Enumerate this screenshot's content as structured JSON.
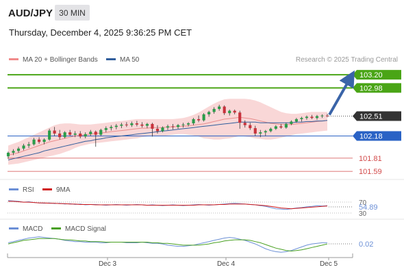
{
  "header": {
    "symbol": "AUD/JPY",
    "timeframe": "30 MIN",
    "datetime": "Thursday, December 4, 2025 9:36:25 PM CET"
  },
  "legend": {
    "ma20_label": "MA 20 + Bollinger Bands",
    "ma50_label": "MA 50",
    "ma20_color": "#f08a8a",
    "ma50_color": "#2f5d9c"
  },
  "credit": "Research © 2025 Trading Central",
  "colors": {
    "resistance": "#4aa516",
    "current": "#333333",
    "pivot": "#2a62c5",
    "support": "#d24a4a",
    "bull_candle": "#2a9d4a",
    "bear_candle": "#c8323c",
    "band_fill": "#f7c6c6",
    "arrow": "#3a64a8",
    "rsi": "#6b8fd6",
    "rsi_ma": "#d01818",
    "macd": "#6b8fd6",
    "macd_signal": "#48a020"
  },
  "levels": [
    {
      "name": "resistance-2",
      "label": "103.20",
      "value": 103.2,
      "style": "resistance"
    },
    {
      "name": "resistance-1",
      "label": "102.98",
      "value": 102.98,
      "style": "resistance"
    },
    {
      "name": "current-price",
      "label": "102.51",
      "value": 102.51,
      "style": "current"
    },
    {
      "name": "pivot",
      "label": "102.18",
      "value": 102.18,
      "style": "pivot"
    },
    {
      "name": "support-1",
      "label": "101.81",
      "value": 101.81,
      "style": "support"
    },
    {
      "name": "support-2",
      "label": "101.59",
      "value": 101.59,
      "style": "support"
    }
  ],
  "rsi": {
    "label": "RSI",
    "ma_label": "9MA",
    "ticks": [
      "70",
      "30"
    ],
    "value_label": "54.89",
    "values": [
      68,
      67,
      66,
      64,
      65,
      63,
      62,
      61,
      62,
      60,
      61,
      59,
      60,
      58,
      59,
      57,
      58,
      58,
      57,
      56,
      57,
      58,
      57,
      56,
      57,
      58,
      57,
      56,
      57,
      56,
      55,
      56,
      57,
      56,
      55,
      56,
      57,
      58,
      57,
      56,
      57,
      58,
      59,
      60,
      61,
      60,
      59,
      58,
      57,
      55,
      53,
      50,
      47,
      46,
      45,
      47,
      49,
      50,
      52,
      53,
      55,
      54,
      55
    ],
    "ma_values": [
      66,
      66,
      65,
      64,
      64,
      63,
      62,
      62,
      61,
      61,
      60,
      60,
      59,
      59,
      58,
      58,
      58,
      57,
      57,
      57,
      57,
      57,
      57,
      57,
      57,
      57,
      57,
      56,
      56,
      56,
      56,
      56,
      56,
      56,
      56,
      56,
      56,
      57,
      57,
      57,
      57,
      58,
      58,
      59,
      59,
      59,
      59,
      58,
      57,
      56,
      55,
      53,
      51,
      49,
      48,
      47,
      48,
      49,
      50,
      51,
      52,
      53,
      54
    ]
  },
  "macd": {
    "label": "MACD",
    "signal_label": "MACD Signal",
    "value_label": "0.02",
    "values": [
      0.02,
      0.04,
      0.06,
      0.08,
      0.1,
      0.11,
      0.12,
      0.11,
      0.1,
      0.09,
      0.08,
      0.06,
      0.05,
      0.04,
      0.04,
      0.03,
      0.03,
      0.03,
      0.02,
      0.02,
      0.03,
      0.03,
      0.03,
      0.02,
      0.02,
      0.02,
      0.03,
      0.02,
      0.01,
      0.01,
      0.0,
      -0.02,
      -0.03,
      -0.04,
      -0.04,
      -0.03,
      -0.02,
      0.0,
      0.02,
      0.04,
      0.06,
      0.08,
      0.1,
      0.11,
      0.1,
      0.08,
      0.06,
      0.03,
      0.0,
      -0.04,
      -0.08,
      -0.11,
      -0.13,
      -0.14,
      -0.13,
      -0.11,
      -0.08,
      -0.05,
      -0.02,
      0.0,
      0.01,
      0.02,
      0.02
    ],
    "signal_values": [
      0.0,
      0.02,
      0.04,
      0.06,
      0.07,
      0.08,
      0.09,
      0.09,
      0.09,
      0.09,
      0.08,
      0.07,
      0.07,
      0.06,
      0.05,
      0.05,
      0.04,
      0.04,
      0.04,
      0.03,
      0.03,
      0.03,
      0.03,
      0.03,
      0.03,
      0.03,
      0.03,
      0.03,
      0.02,
      0.02,
      0.01,
      0.01,
      0.0,
      -0.01,
      -0.02,
      -0.02,
      -0.02,
      -0.02,
      -0.01,
      0.0,
      0.02,
      0.03,
      0.05,
      0.06,
      0.07,
      0.07,
      0.07,
      0.06,
      0.04,
      0.02,
      -0.01,
      -0.04,
      -0.07,
      -0.09,
      -0.11,
      -0.12,
      -0.11,
      -0.1,
      -0.08,
      -0.06,
      -0.04,
      -0.02,
      0.0
    ]
  },
  "chart_data": {
    "type": "candlestick",
    "x_labels": [
      "Dec 3",
      "Dec 4",
      "Dec 5"
    ],
    "ylim": [
      101.5,
      103.35
    ],
    "arrow": {
      "from": 102.51,
      "to": 103.2
    },
    "candles": [
      [
        101.84,
        101.92,
        101.8,
        101.9
      ],
      [
        101.9,
        101.96,
        101.86,
        101.93
      ],
      [
        101.93,
        102.0,
        101.9,
        101.97
      ],
      [
        101.97,
        102.05,
        101.94,
        102.02
      ],
      [
        102.02,
        102.08,
        101.98,
        102.04
      ],
      [
        102.04,
        102.15,
        102.02,
        102.12
      ],
      [
        102.12,
        102.16,
        102.05,
        102.08
      ],
      [
        102.08,
        102.14,
        102.04,
        102.12
      ],
      [
        102.12,
        102.3,
        102.1,
        102.27
      ],
      [
        102.27,
        102.33,
        102.18,
        102.22
      ],
      [
        102.22,
        102.28,
        102.12,
        102.16
      ],
      [
        102.16,
        102.26,
        102.14,
        102.24
      ],
      [
        102.24,
        102.28,
        102.18,
        102.2
      ],
      [
        102.2,
        102.26,
        102.16,
        102.22
      ],
      [
        102.22,
        102.26,
        102.14,
        102.17
      ],
      [
        102.17,
        102.24,
        102.14,
        102.21
      ],
      [
        102.21,
        102.28,
        102.18,
        102.25
      ],
      [
        102.25,
        102.27,
        102.0,
        102.2
      ],
      [
        102.2,
        102.3,
        102.18,
        102.28
      ],
      [
        102.28,
        102.34,
        102.24,
        102.31
      ],
      [
        102.31,
        102.36,
        102.27,
        102.33
      ],
      [
        102.33,
        102.38,
        102.29,
        102.35
      ],
      [
        102.35,
        102.4,
        102.31,
        102.37
      ],
      [
        102.37,
        102.41,
        102.33,
        102.36
      ],
      [
        102.36,
        102.42,
        102.33,
        102.39
      ],
      [
        102.39,
        102.43,
        102.34,
        102.37
      ],
      [
        102.37,
        102.41,
        102.32,
        102.35
      ],
      [
        102.35,
        102.4,
        102.31,
        102.38
      ],
      [
        102.38,
        102.4,
        102.17,
        102.3
      ],
      [
        102.3,
        102.36,
        102.22,
        102.26
      ],
      [
        102.26,
        102.34,
        102.24,
        102.32
      ],
      [
        102.32,
        102.37,
        102.28,
        102.34
      ],
      [
        102.34,
        102.38,
        102.29,
        102.33
      ],
      [
        102.33,
        102.38,
        102.3,
        102.36
      ],
      [
        102.36,
        102.4,
        102.32,
        102.37
      ],
      [
        102.37,
        102.41,
        102.34,
        102.39
      ],
      [
        102.39,
        102.48,
        102.36,
        102.46
      ],
      [
        102.46,
        102.52,
        102.41,
        102.44
      ],
      [
        102.44,
        102.56,
        102.42,
        102.54
      ],
      [
        102.54,
        102.6,
        102.5,
        102.58
      ],
      [
        102.58,
        102.66,
        102.55,
        102.63
      ],
      [
        102.63,
        102.7,
        102.6,
        102.67
      ],
      [
        102.67,
        102.69,
        102.53,
        102.56
      ],
      [
        102.56,
        102.62,
        102.52,
        102.6
      ],
      [
        102.6,
        102.62,
        102.54,
        102.57
      ],
      [
        102.57,
        102.6,
        102.3,
        102.4
      ],
      [
        102.4,
        102.44,
        102.32,
        102.36
      ],
      [
        102.36,
        102.4,
        102.28,
        102.31
      ],
      [
        102.31,
        102.35,
        102.18,
        102.22
      ],
      [
        102.22,
        102.28,
        102.16,
        102.24
      ],
      [
        102.24,
        102.28,
        102.18,
        102.26
      ],
      [
        102.26,
        102.32,
        102.24,
        102.3
      ],
      [
        102.3,
        102.36,
        102.28,
        102.34
      ],
      [
        102.34,
        102.38,
        102.3,
        102.32
      ],
      [
        102.32,
        102.4,
        102.3,
        102.38
      ],
      [
        102.38,
        102.44,
        102.36,
        102.42
      ],
      [
        102.42,
        102.48,
        102.4,
        102.46
      ],
      [
        102.46,
        102.5,
        102.42,
        102.48
      ],
      [
        102.48,
        102.52,
        102.45,
        102.5
      ],
      [
        102.5,
        102.53,
        102.46,
        102.48
      ],
      [
        102.48,
        102.53,
        102.45,
        102.51
      ],
      [
        102.51,
        102.54,
        102.48,
        102.52
      ],
      [
        102.52,
        102.55,
        102.49,
        102.51
      ]
    ],
    "ma20": [
      101.86,
      101.88,
      101.9,
      101.93,
      101.96,
      101.99,
      102.02,
      102.05,
      102.08,
      102.1,
      102.12,
      102.14,
      102.16,
      102.18,
      102.19,
      102.2,
      102.21,
      102.22,
      102.23,
      102.24,
      102.25,
      102.26,
      102.27,
      102.28,
      102.29,
      102.3,
      102.31,
      102.31,
      102.32,
      102.32,
      102.32,
      102.33,
      102.33,
      102.34,
      102.34,
      102.35,
      102.36,
      102.37,
      102.38,
      102.4,
      102.42,
      102.44,
      102.46,
      102.47,
      102.48,
      102.49,
      102.48,
      102.47,
      102.45,
      102.43,
      102.41,
      102.39,
      102.38,
      102.37,
      102.37,
      102.37,
      102.38,
      102.39,
      102.4,
      102.41,
      102.42,
      102.43,
      102.44
    ],
    "bb_upper": [
      102.02,
      102.05,
      102.08,
      102.12,
      102.16,
      102.2,
      102.24,
      102.28,
      102.32,
      102.36,
      102.38,
      102.39,
      102.39,
      102.38,
      102.37,
      102.37,
      102.37,
      102.38,
      102.39,
      102.4,
      102.41,
      102.42,
      102.43,
      102.44,
      102.45,
      102.46,
      102.46,
      102.46,
      102.46,
      102.46,
      102.46,
      102.46,
      102.46,
      102.47,
      102.48,
      102.5,
      102.53,
      102.57,
      102.62,
      102.67,
      102.72,
      102.76,
      102.79,
      102.8,
      102.8,
      102.8,
      102.8,
      102.79,
      102.77,
      102.74,
      102.7,
      102.66,
      102.62,
      102.58,
      102.56,
      102.55,
      102.55,
      102.56,
      102.57,
      102.58,
      102.58,
      102.58,
      102.58
    ],
    "bb_lower": [
      101.7,
      101.71,
      101.72,
      101.74,
      101.76,
      101.78,
      101.8,
      101.82,
      101.84,
      101.86,
      101.88,
      101.91,
      101.94,
      101.98,
      102.01,
      102.03,
      102.05,
      102.06,
      102.07,
      102.08,
      102.09,
      102.1,
      102.11,
      102.12,
      102.13,
      102.14,
      102.16,
      102.17,
      102.18,
      102.18,
      102.18,
      102.19,
      102.2,
      102.21,
      102.21,
      102.2,
      102.19,
      102.17,
      102.14,
      102.13,
      102.12,
      102.12,
      102.13,
      102.14,
      102.16,
      102.18,
      102.17,
      102.16,
      102.14,
      102.13,
      102.12,
      102.12,
      102.13,
      102.15,
      102.17,
      102.19,
      102.21,
      102.22,
      102.23,
      102.24,
      102.25,
      102.26,
      102.27
    ],
    "ma50": [
      101.78,
      101.8,
      101.82,
      101.84,
      101.86,
      101.88,
      101.9,
      101.93,
      101.95,
      101.97,
      101.99,
      102.01,
      102.03,
      102.05,
      102.07,
      102.09,
      102.1,
      102.12,
      102.13,
      102.15,
      102.16,
      102.17,
      102.18,
      102.19,
      102.2,
      102.21,
      102.22,
      102.23,
      102.24,
      102.25,
      102.26,
      102.27,
      102.28,
      102.29,
      102.3,
      102.31,
      102.32,
      102.33,
      102.34,
      102.35,
      102.36,
      102.37,
      102.38,
      102.39,
      102.4,
      102.41,
      102.41,
      102.41,
      102.41,
      102.4,
      102.4,
      102.4,
      102.4,
      102.4,
      102.4,
      102.4,
      102.41,
      102.41,
      102.42,
      102.42,
      102.43,
      102.43,
      102.44
    ]
  }
}
